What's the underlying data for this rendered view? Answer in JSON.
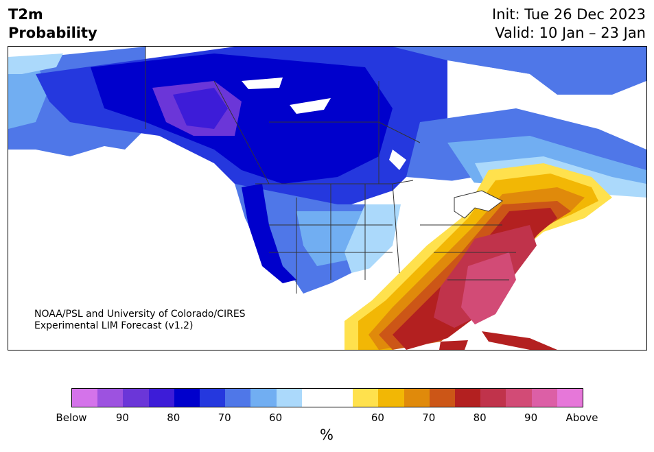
{
  "title": {
    "variable": "T2m",
    "subtitle": "Probability"
  },
  "dates": {
    "init": "Init: Tue 26 Dec 2023",
    "valid": "Valid: 10 Jan – 23 Jan"
  },
  "credit": {
    "line1": "NOAA/PSL and University of Colorado/CIRES",
    "line2": "Experimental LIM Forecast (v1.2)"
  },
  "colorbar": {
    "unit": "%",
    "colors": [
      "#d473ea",
      "#9d52e0",
      "#6b36d8",
      "#3d1cd8",
      "#0000cc",
      "#2538de",
      "#4f77e8",
      "#71aef2",
      "#abd9fb",
      "#ffffff",
      "#ffffff",
      "#ffe14d",
      "#f2b705",
      "#e08a0b",
      "#cc5617",
      "#b32020",
      "#c0334b",
      "#d24b76",
      "#dc5fa6",
      "#e677d9"
    ],
    "ticks": [
      "Below",
      "90",
      "80",
      "70",
      "60",
      "60",
      "70",
      "80",
      "90",
      "Above"
    ]
  },
  "palette": {
    "land": "#ffffff",
    "border": "#333333",
    "cold1": "#abd9fb",
    "cold2": "#71aef2",
    "cold3": "#4f77e8",
    "cold4": "#2538de",
    "cold5": "#0000cc",
    "cold6": "#3d1cd8",
    "cold7": "#6b36d8",
    "warm1": "#ffe14d",
    "warm2": "#f2b705",
    "warm3": "#e08a0b",
    "warm4": "#cc5617",
    "warm5": "#b32020",
    "warm6": "#c0334b",
    "warm7": "#d24b76"
  }
}
